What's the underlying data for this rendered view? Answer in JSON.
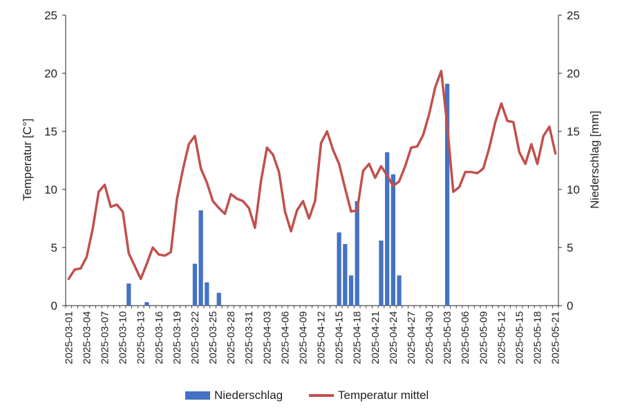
{
  "chart_data": {
    "type": "bar+line",
    "title": "",
    "y_left_label": "Temperatur [C°]",
    "y_right_label": "Niederschlag [mm]",
    "y_left_lim": [
      0,
      25
    ],
    "y_right_lim": [
      0,
      25
    ],
    "y_left_ticks": [
      "0",
      "5",
      "10",
      "15",
      "20",
      "25"
    ],
    "y_right_ticks": [
      "0",
      "5",
      "10",
      "15",
      "20",
      "25"
    ],
    "x_tick_labels": [
      "2025-03-01",
      "2025-03-04",
      "2025-03-07",
      "2025-03-10",
      "2025-03-13",
      "2025-03-16",
      "2025-03-19",
      "2025-03-22",
      "2025-03-25",
      "2025-03-28",
      "2025-03-31",
      "2025-04-03",
      "2025-04-06",
      "2025-04-09",
      "2025-04-12",
      "2025-04-15",
      "2025-04-18",
      "2025-04-21",
      "2025-04-24",
      "2025-04-27",
      "2025-04-30",
      "2025-05-03",
      "2025-05-06",
      "2025-05-09",
      "2025-05-12",
      "2025-05-15",
      "2025-05-18",
      "2025-05-21"
    ],
    "legend": [
      {
        "name": "Niederschlag",
        "color": "#4472C4"
      },
      {
        "name": "Temperatur mittel",
        "color": "#C0504D"
      }
    ],
    "legend_position": "bottom",
    "grid": false,
    "series": [
      {
        "name": "Niederschlag",
        "type": "bar",
        "axis": "right",
        "color": "#4472C4",
        "points": [
          {
            "date": "2025-03-11",
            "value": 1.9
          },
          {
            "date": "2025-03-14",
            "value": 0.3
          },
          {
            "date": "2025-03-22",
            "value": 3.6
          },
          {
            "date": "2025-03-23",
            "value": 8.2
          },
          {
            "date": "2025-03-24",
            "value": 2.0
          },
          {
            "date": "2025-03-26",
            "value": 1.1
          },
          {
            "date": "2025-04-15",
            "value": 6.3
          },
          {
            "date": "2025-04-16",
            "value": 5.3
          },
          {
            "date": "2025-04-17",
            "value": 2.6
          },
          {
            "date": "2025-04-18",
            "value": 9.0
          },
          {
            "date": "2025-04-22",
            "value": 5.6
          },
          {
            "date": "2025-04-23",
            "value": 13.2
          },
          {
            "date": "2025-04-24",
            "value": 11.3
          },
          {
            "date": "2025-04-25",
            "value": 2.6
          },
          {
            "date": "2025-05-03",
            "value": 19.1
          }
        ]
      },
      {
        "name": "Temperatur mittel",
        "type": "line",
        "axis": "left",
        "color": "#C0504D",
        "start_date": "2025-03-01",
        "values": [
          2.3,
          3.1,
          3.2,
          4.2,
          6.6,
          9.8,
          10.4,
          8.5,
          8.7,
          8.1,
          4.5,
          3.4,
          2.3,
          3.6,
          5.0,
          4.4,
          4.3,
          4.6,
          9.1,
          11.7,
          13.9,
          14.6,
          11.8,
          10.6,
          9.0,
          8.4,
          7.9,
          9.6,
          9.2,
          9.0,
          8.4,
          6.7,
          10.7,
          13.6,
          13.0,
          11.5,
          8.1,
          6.4,
          8.2,
          9.0,
          7.5,
          9.0,
          14.0,
          15.0,
          13.4,
          12.2,
          10.1,
          8.1,
          8.2,
          11.6,
          12.2,
          11.0,
          12.0,
          11.2,
          10.3,
          10.7,
          12.0,
          13.6,
          13.7,
          14.7,
          16.5,
          18.8,
          20.2,
          15.5,
          9.8,
          10.2,
          11.5,
          11.5,
          11.4,
          11.8,
          13.6,
          15.8,
          17.4,
          15.9,
          15.8,
          13.2,
          12.2,
          13.9,
          12.2,
          14.6,
          15.4,
          13.1
        ]
      }
    ]
  }
}
